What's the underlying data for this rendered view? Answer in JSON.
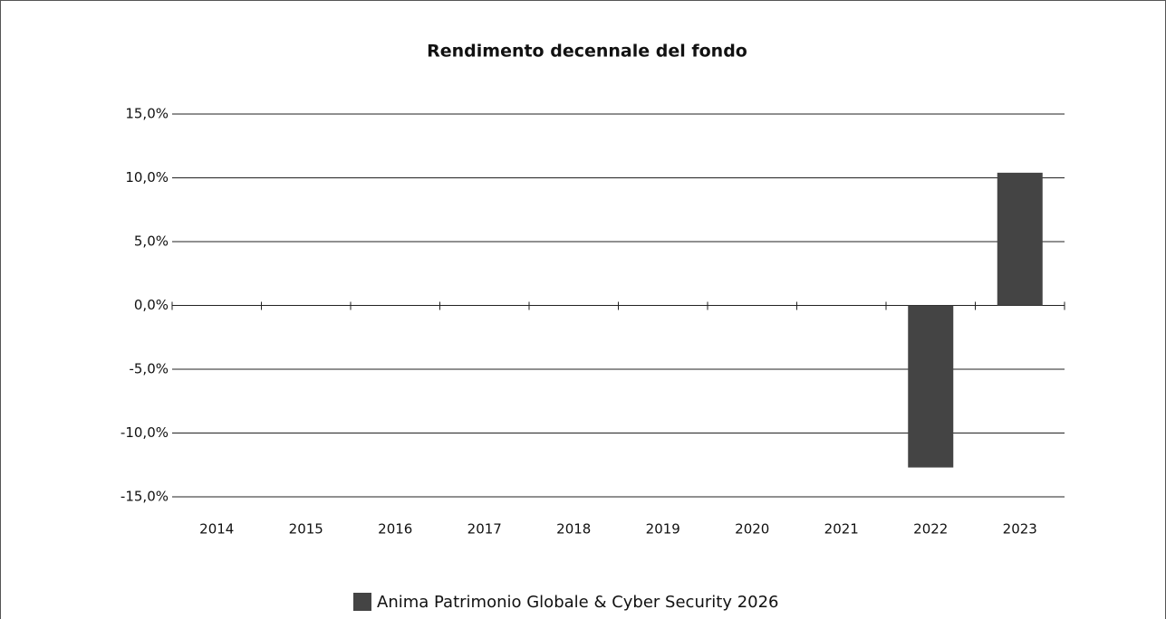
{
  "chart_data": {
    "type": "bar",
    "title": "Rendimento decennale del fondo",
    "categories": [
      "2014",
      "2015",
      "2016",
      "2017",
      "2018",
      "2019",
      "2020",
      "2021",
      "2022",
      "2023"
    ],
    "series": [
      {
        "name": "Anima Patrimonio Globale & Cyber Security 2026",
        "color": "#444444",
        "values": [
          null,
          null,
          null,
          null,
          null,
          null,
          null,
          null,
          -12.7,
          10.4
        ]
      }
    ],
    "ylim": [
      -15,
      15
    ],
    "yticks": [
      {
        "value": -15,
        "label": "-15,0%"
      },
      {
        "value": -10,
        "label": "-10,0%"
      },
      {
        "value": -5,
        "label": "-5,0%"
      },
      {
        "value": 0,
        "label": "0,0%"
      },
      {
        "value": 5,
        "label": "5,0%"
      },
      {
        "value": 10,
        "label": "10,0%"
      },
      {
        "value": 15,
        "label": "15,0%"
      }
    ],
    "grid": true,
    "legend": "bottom"
  }
}
